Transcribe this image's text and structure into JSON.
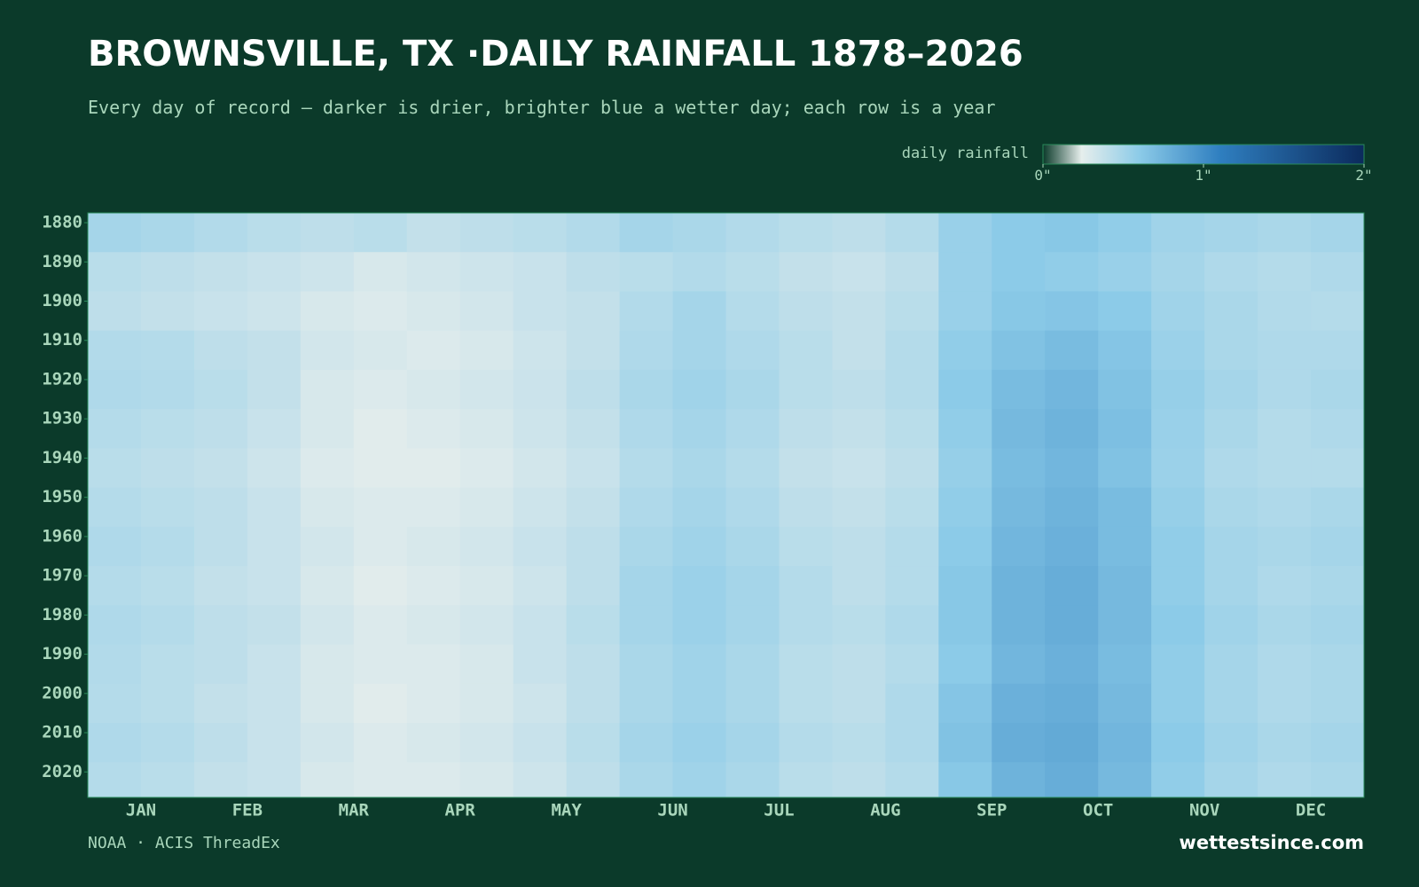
{
  "chart_data": {
    "type": "heatmap",
    "title": "BROWNSVILLE, TX ·DAILY RAINFALL 1878–2026",
    "subtitle": "Every day of record — darker is drier, brighter blue a wetter day; each row is a year",
    "source": "NOAA · ACIS ThreadEx",
    "brand": "wettestsince.com",
    "colorbar_label": "daily rainfall",
    "clim": [
      0,
      2
    ],
    "cticks": [
      {
        "value": 0,
        "label": "0\""
      },
      {
        "value": 1,
        "label": "1\""
      },
      {
        "value": 2,
        "label": "2\""
      }
    ],
    "colorscale": [
      [
        0,
        "#0b3a2a"
      ],
      [
        0.12,
        "#e6eeec"
      ],
      [
        0.3,
        "#8ccbe8"
      ],
      [
        0.55,
        "#2f7fc0"
      ],
      [
        1,
        "#0b2a5c"
      ]
    ],
    "background": "#0b3a2a",
    "categories": [
      "JAN",
      "FEB",
      "MAR",
      "APR",
      "MAY",
      "JUN",
      "JUL",
      "AUG",
      "SEP",
      "OCT",
      "NOV",
      "DEC"
    ],
    "x_bins_per_category": 2,
    "ylim": [
      1878,
      2027
    ],
    "yticks": [
      1880,
      1890,
      1900,
      1910,
      1920,
      1930,
      1940,
      1950,
      1960,
      1970,
      1980,
      1990,
      2000,
      2010,
      2020
    ],
    "y_bins": [
      1878,
      1888,
      1898,
      1908,
      1918,
      1928,
      1938,
      1948,
      1958,
      1968,
      1978,
      1988,
      1998,
      2008,
      2018,
      2027
    ],
    "values": [
      [
        0.5,
        0.48,
        0.45,
        0.42,
        0.4,
        0.42,
        0.38,
        0.4,
        0.42,
        0.45,
        0.5,
        0.48,
        0.45,
        0.42,
        0.4,
        0.44,
        0.55,
        0.6,
        0.62,
        0.58,
        0.52,
        0.5,
        0.48,
        0.5
      ],
      [
        0.42,
        0.4,
        0.38,
        0.36,
        0.34,
        0.3,
        0.32,
        0.34,
        0.36,
        0.4,
        0.42,
        0.45,
        0.42,
        0.38,
        0.36,
        0.4,
        0.55,
        0.6,
        0.58,
        0.55,
        0.5,
        0.46,
        0.44,
        0.46
      ],
      [
        0.4,
        0.38,
        0.36,
        0.34,
        0.3,
        0.28,
        0.3,
        0.32,
        0.36,
        0.38,
        0.45,
        0.5,
        0.44,
        0.4,
        0.38,
        0.42,
        0.55,
        0.62,
        0.64,
        0.6,
        0.52,
        0.48,
        0.45,
        0.44
      ],
      [
        0.45,
        0.44,
        0.4,
        0.38,
        0.32,
        0.3,
        0.28,
        0.3,
        0.34,
        0.38,
        0.46,
        0.5,
        0.46,
        0.42,
        0.38,
        0.44,
        0.58,
        0.66,
        0.7,
        0.64,
        0.54,
        0.48,
        0.46,
        0.46
      ],
      [
        0.46,
        0.45,
        0.42,
        0.38,
        0.3,
        0.28,
        0.3,
        0.32,
        0.35,
        0.4,
        0.48,
        0.52,
        0.48,
        0.42,
        0.4,
        0.44,
        0.6,
        0.7,
        0.74,
        0.66,
        0.56,
        0.5,
        0.46,
        0.48
      ],
      [
        0.44,
        0.42,
        0.4,
        0.36,
        0.3,
        0.26,
        0.28,
        0.3,
        0.34,
        0.38,
        0.46,
        0.5,
        0.46,
        0.4,
        0.38,
        0.42,
        0.58,
        0.72,
        0.76,
        0.68,
        0.55,
        0.48,
        0.44,
        0.46
      ],
      [
        0.42,
        0.4,
        0.38,
        0.34,
        0.28,
        0.26,
        0.26,
        0.28,
        0.32,
        0.36,
        0.44,
        0.48,
        0.44,
        0.38,
        0.36,
        0.4,
        0.56,
        0.7,
        0.74,
        0.66,
        0.54,
        0.46,
        0.44,
        0.44
      ],
      [
        0.44,
        0.42,
        0.4,
        0.36,
        0.3,
        0.28,
        0.28,
        0.3,
        0.34,
        0.38,
        0.46,
        0.5,
        0.46,
        0.4,
        0.38,
        0.42,
        0.58,
        0.72,
        0.76,
        0.7,
        0.56,
        0.48,
        0.46,
        0.48
      ],
      [
        0.46,
        0.44,
        0.4,
        0.36,
        0.32,
        0.28,
        0.3,
        0.32,
        0.36,
        0.4,
        0.48,
        0.52,
        0.48,
        0.42,
        0.4,
        0.44,
        0.6,
        0.74,
        0.78,
        0.7,
        0.58,
        0.5,
        0.48,
        0.5
      ],
      [
        0.44,
        0.42,
        0.38,
        0.36,
        0.3,
        0.26,
        0.28,
        0.3,
        0.34,
        0.4,
        0.5,
        0.54,
        0.5,
        0.44,
        0.4,
        0.44,
        0.62,
        0.76,
        0.8,
        0.72,
        0.58,
        0.5,
        0.46,
        0.48
      ],
      [
        0.46,
        0.44,
        0.4,
        0.38,
        0.32,
        0.28,
        0.3,
        0.32,
        0.36,
        0.42,
        0.5,
        0.54,
        0.5,
        0.44,
        0.42,
        0.46,
        0.62,
        0.76,
        0.8,
        0.72,
        0.6,
        0.52,
        0.48,
        0.5
      ],
      [
        0.45,
        0.42,
        0.4,
        0.36,
        0.3,
        0.28,
        0.28,
        0.3,
        0.36,
        0.4,
        0.48,
        0.52,
        0.48,
        0.42,
        0.4,
        0.44,
        0.6,
        0.74,
        0.78,
        0.7,
        0.58,
        0.5,
        0.46,
        0.48
      ],
      [
        0.44,
        0.42,
        0.38,
        0.36,
        0.3,
        0.26,
        0.28,
        0.3,
        0.34,
        0.4,
        0.48,
        0.52,
        0.48,
        0.42,
        0.4,
        0.46,
        0.64,
        0.78,
        0.8,
        0.72,
        0.58,
        0.5,
        0.46,
        0.48
      ],
      [
        0.46,
        0.44,
        0.4,
        0.36,
        0.32,
        0.28,
        0.3,
        0.32,
        0.36,
        0.42,
        0.5,
        0.54,
        0.5,
        0.44,
        0.42,
        0.46,
        0.66,
        0.8,
        0.82,
        0.74,
        0.6,
        0.52,
        0.48,
        0.5
      ],
      [
        0.44,
        0.42,
        0.38,
        0.36,
        0.3,
        0.28,
        0.28,
        0.3,
        0.34,
        0.4,
        0.48,
        0.52,
        0.48,
        0.42,
        0.4,
        0.44,
        0.62,
        0.76,
        0.8,
        0.72,
        0.58,
        0.5,
        0.46,
        0.48
      ]
    ]
  }
}
